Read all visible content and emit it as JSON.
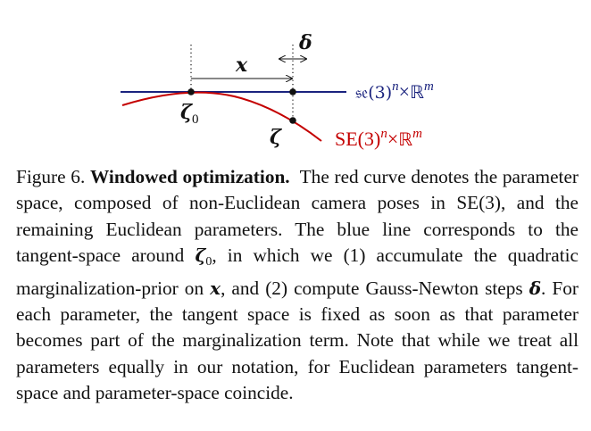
{
  "figure": {
    "label_x": "x",
    "label_delta": "δ",
    "label_zeta0_symbol": "ζ",
    "label_zeta0_subscript": "0",
    "label_zeta": "ζ",
    "blue_label_base": "𝔰𝔢(3)",
    "blue_label_sup_n": "n",
    "blue_label_times": "×",
    "blue_label_R": "ℝ",
    "blue_label_sup_m": "m",
    "red_label_base": "SE(3)",
    "red_label_sup_n": "n",
    "red_label_times": "×",
    "red_label_R": "ℝ",
    "red_label_sup_m": "m",
    "colors": {
      "tangent_line": "#1a237e",
      "curve": "#c40000",
      "text": "#111111"
    }
  },
  "caption": {
    "figure_number": "Figure 6.",
    "title": "Windowed optimization.",
    "text_1": "The red curve denotes the parameter space, composed of non-Euclidean camera poses in SE(3), and the remaining Euclidean parameters.  The blue line corresponds to the tangent-space around ",
    "sym_zeta": "ζ",
    "sym_zeta_sub": "0",
    "text_2": ", in which we (1) accu­mulate the quadratic marginalization-prior on ",
    "sym_x": "x",
    "text_3": ", and (2) compute Gauss-Newton steps ",
    "sym_delta": "δ",
    "text_4": ".  For each parameter, the tangent space is fixed as soon as that parameter becomes part of the marginalization term.  Note that while we treat all parameters equally in our nota­tion, for Euclidean parameters tangent-space and parameter-space coincide."
  }
}
